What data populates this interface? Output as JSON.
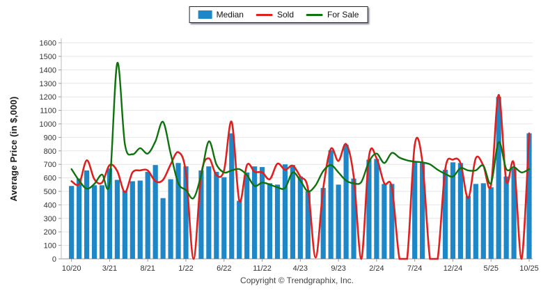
{
  "legend": {
    "items": [
      {
        "label": "Median",
        "type": "bar",
        "color": "#1E87C8"
      },
      {
        "label": "Sold",
        "type": "line",
        "color": "#E0201F"
      },
      {
        "label": "For Sale",
        "type": "line",
        "color": "#0E720E"
      }
    ]
  },
  "footer": {
    "copyright": "Copyright © Trendgraphix, Inc."
  },
  "chart_data": {
    "type": "bar",
    "subtype": "combo-bar-line",
    "title": "",
    "xlabel": "",
    "ylabel": "Average Price (in $,000)",
    "ylim": [
      0,
      1600
    ],
    "ytick_step": 100,
    "grid": "horizontal",
    "legend_position": "top-center",
    "categories": [
      "10/20",
      "11/20",
      "12/20",
      "1/21",
      "2/21",
      "3/21",
      "4/21",
      "5/21",
      "6/21",
      "7/21",
      "8/21",
      "9/21",
      "10/21",
      "11/21",
      "12/21",
      "1/22",
      "2/22",
      "3/22",
      "4/22",
      "5/22",
      "6/22",
      "7/22",
      "8/22",
      "9/22",
      "10/22",
      "11/22",
      "12/22",
      "1/23",
      "2/23",
      "3/23",
      "4/23",
      "5/23",
      "6/23",
      "7/23",
      "8/23",
      "9/23",
      "10/23",
      "11/23",
      "12/23",
      "1/24",
      "2/24",
      "3/24",
      "4/24",
      "5/24",
      "6/24",
      "7/24",
      "8/24",
      "9/24",
      "10/24",
      "11/24",
      "12/24",
      "1/25",
      "2/25",
      "3/25",
      "4/25",
      "5/25",
      "6/25",
      "7/25",
      "8/25",
      "9/25",
      "10/25"
    ],
    "x_tick_labels": [
      "10/20",
      "3/21",
      "8/21",
      "1/22",
      "6/22",
      "11/22",
      "4/23",
      "9/23",
      "2/24",
      "7/24",
      "12/24",
      "5/25",
      "10/25"
    ],
    "series": [
      {
        "name": "Median",
        "type": "bar",
        "color": "#1E87C8",
        "values": [
          540,
          595,
          655,
          545,
          545,
          670,
          585,
          505,
          575,
          580,
          645,
          695,
          450,
          590,
          710,
          685,
          null,
          655,
          685,
          645,
          605,
          930,
          430,
          640,
          685,
          680,
          560,
          550,
          700,
          695,
          610,
          500,
          null,
          525,
          805,
          550,
          845,
          595,
          null,
          735,
          740,
          555,
          555,
          null,
          null,
          725,
          715,
          null,
          null,
          660,
          715,
          710,
          465,
          555,
          560,
          530,
          1200,
          610,
          670,
          null,
          930
        ]
      },
      {
        "name": "Sold",
        "type": "line",
        "color": "#E0201F",
        "values": [
          575,
          555,
          730,
          590,
          565,
          695,
          650,
          495,
          640,
          655,
          655,
          575,
          585,
          700,
          790,
          640,
          0,
          620,
          745,
          620,
          655,
          1015,
          430,
          695,
          645,
          640,
          590,
          705,
          660,
          690,
          610,
          520,
          10,
          520,
          815,
          725,
          850,
          610,
          0,
          760,
          745,
          560,
          530,
          0,
          0,
          845,
          720,
          0,
          0,
          665,
          735,
          710,
          450,
          745,
          690,
          545,
          1215,
          575,
          705,
          0,
          930
        ]
      },
      {
        "name": "For Sale",
        "type": "line",
        "color": "#0E720E",
        "values": [
          665,
          580,
          520,
          555,
          625,
          565,
          1450,
          850,
          775,
          820,
          780,
          870,
          1015,
          780,
          560,
          510,
          450,
          620,
          870,
          700,
          640,
          655,
          665,
          620,
          540,
          565,
          550,
          530,
          525,
          640,
          580,
          500,
          545,
          650,
          695,
          640,
          580,
          560,
          570,
          720,
          780,
          710,
          785,
          750,
          730,
          720,
          715,
          700,
          660,
          630,
          610,
          672,
          655,
          655,
          690,
          560,
          865,
          665,
          680,
          640,
          665
        ]
      }
    ]
  }
}
